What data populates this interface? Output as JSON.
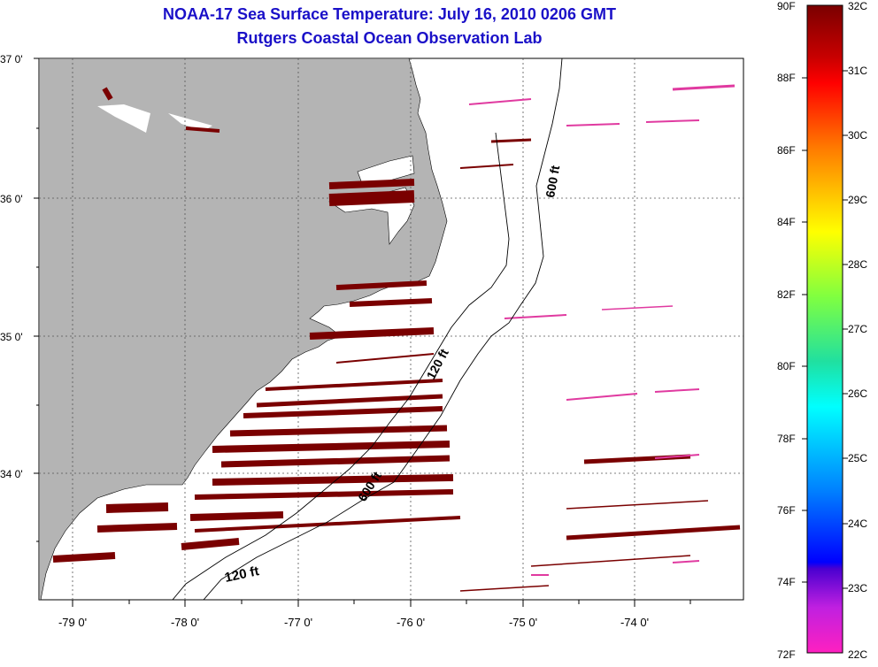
{
  "title": {
    "line1": "NOAA-17 Sea Surface Temperature:  July 16, 2010 0206 GMT",
    "line2": "Rutgers Coastal Ocean Observation Lab"
  },
  "map": {
    "lat_labels": [
      "37 0'",
      "36 0'",
      "35 0'",
      "34 0'"
    ],
    "lon_labels": [
      "-79 0'",
      "-78 0'",
      "-77 0'",
      "-76 0'",
      "-75 0'",
      "-74 0'"
    ],
    "contour_labels": [
      "600 ft",
      "120 ft",
      "600 ft",
      "120 ft"
    ],
    "land_color": "#b4b4b4",
    "sst_color": "#7a0000",
    "cool_color": "#e03aa0"
  },
  "colorbar": {
    "fahrenheit": [
      "90F",
      "88F",
      "86F",
      "84F",
      "82F",
      "80F",
      "78F",
      "76F",
      "74F",
      "72F"
    ],
    "celsius": [
      "32C",
      "31C",
      "30C",
      "29C",
      "28C",
      "27C",
      "26C",
      "25C",
      "24C",
      "23C",
      "22C"
    ]
  }
}
